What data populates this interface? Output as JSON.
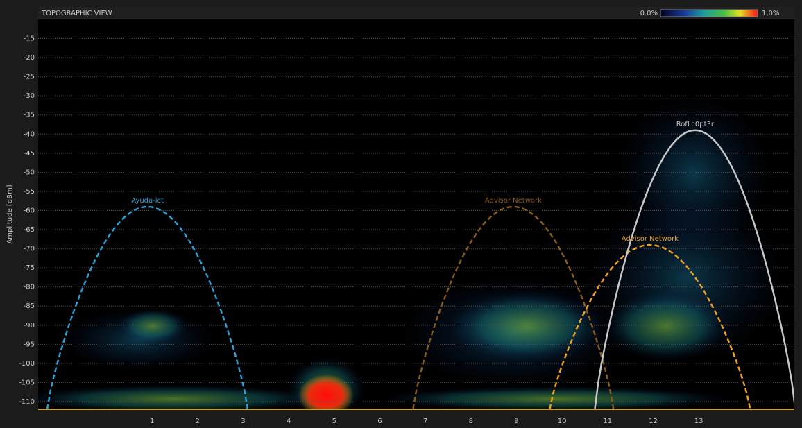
{
  "chart_data": {
    "type": "spectrum",
    "title": "TOPOGRAPHIC VIEW",
    "y_label": "Amplitude [dBm]",
    "colorbar": {
      "min_label": "0.0%",
      "max_label": "1,0%"
    },
    "xlim": [
      -1.5,
      15.1
    ],
    "ylim": [
      -112,
      -10
    ],
    "xticks": [
      1,
      2,
      3,
      4,
      5,
      6,
      7,
      8,
      9,
      10,
      11,
      12,
      13
    ],
    "yticks": [
      -15,
      -20,
      -25,
      -30,
      -35,
      -40,
      -45,
      -50,
      -55,
      -60,
      -65,
      -70,
      -75,
      -80,
      -85,
      -90,
      -95,
      -100,
      -105,
      -110
    ],
    "grid": true,
    "networks": [
      {
        "name": "Ayuda-ict",
        "color": "#2a9fd6",
        "line_style": "dashed",
        "channel": 0.9,
        "peak": -59
      },
      {
        "name": "Advisor Network",
        "color": "#8a5a1a",
        "line_style": "dashed",
        "channel": 8.93,
        "peak": -59
      },
      {
        "name": "Advisor Network",
        "color": "#f0a020",
        "line_style": "dashed",
        "channel": 11.93,
        "peak": -69
      },
      {
        "name": "RofLc0pt3r",
        "color": "#c8c8c8",
        "line_style": "solid",
        "channel": 12.92,
        "peak": -39
      }
    ]
  }
}
